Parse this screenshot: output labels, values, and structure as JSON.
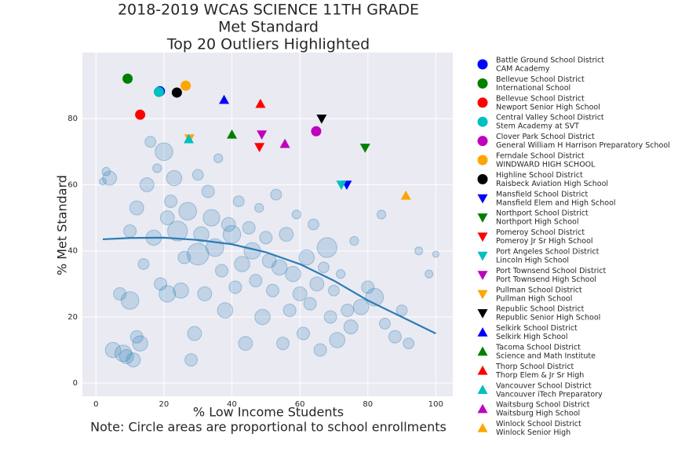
{
  "chart_data": {
    "type": "scatter",
    "title": [
      "2018-2019 WCAS SCIENCE 11TH GRADE",
      "Met Standard",
      "Top 20 Outliers Highlighted"
    ],
    "xlabel": "% Low Income Students",
    "note": "Note: Circle areas are proportional to school enrollments",
    "ylabel": "% Met Standard",
    "xlim": [
      -4,
      105
    ],
    "ylim": [
      -4,
      100
    ],
    "xticks": [
      0,
      20,
      40,
      60,
      80,
      100
    ],
    "yticks": [
      0,
      20,
      40,
      60,
      80
    ],
    "grid": true,
    "legend": "outside-right",
    "background": {
      "color": "#1f77b4",
      "x": [
        2,
        3,
        4,
        5,
        7,
        8,
        9,
        10,
        10,
        11,
        12,
        12,
        13,
        14,
        15,
        16,
        17,
        18,
        19,
        20,
        21,
        21,
        22,
        23,
        24,
        25,
        26,
        27,
        28,
        29,
        30,
        30,
        31,
        32,
        33,
        34,
        35,
        36,
        37,
        38,
        39,
        40,
        41,
        42,
        43,
        44,
        45,
        46,
        47,
        48,
        49,
        50,
        51,
        52,
        53,
        54,
        55,
        56,
        57,
        58,
        59,
        60,
        61,
        62,
        63,
        64,
        65,
        66,
        67,
        68,
        69,
        70,
        71,
        72,
        74,
        75,
        76,
        78,
        80,
        82,
        84,
        85,
        88,
        90,
        92,
        95,
        98,
        100
      ],
      "y": [
        61,
        64,
        62,
        10,
        27,
        9,
        8,
        25,
        46,
        7,
        53,
        14,
        12,
        36,
        60,
        73,
        44,
        65,
        30,
        70,
        27,
        50,
        55,
        62,
        46,
        28,
        38,
        52,
        7,
        15,
        39,
        63,
        45,
        27,
        58,
        50,
        41,
        68,
        34,
        22,
        48,
        45,
        29,
        55,
        36,
        12,
        47,
        40,
        31,
        53,
        20,
        44,
        37,
        28,
        57,
        35,
        12,
        45,
        22,
        33,
        51,
        27,
        15,
        38,
        24,
        48,
        30,
        10,
        35,
        41,
        20,
        28,
        13,
        33,
        22,
        17,
        43,
        23,
        29,
        26,
        51,
        18,
        14,
        22,
        12,
        40,
        33,
        39
      ],
      "sizes": [
        60,
        90,
        250,
        300,
        200,
        350,
        250,
        400,
        200,
        250,
        250,
        200,
        300,
        150,
        250,
        150,
        300,
        100,
        200,
        400,
        350,
        250,
        200,
        300,
        500,
        300,
        200,
        400,
        200,
        250,
        600,
        150,
        300,
        250,
        200,
        350,
        400,
        100,
        200,
        300,
        250,
        400,
        200,
        150,
        300,
        250,
        200,
        350,
        200,
        100,
        300,
        200,
        250,
        200,
        150,
        300,
        200,
        250,
        200,
        300,
        100,
        250,
        200,
        300,
        200,
        150,
        250,
        200,
        150,
        500,
        200,
        150,
        300,
        100,
        200,
        250,
        100,
        300,
        200,
        400,
        100,
        150,
        200,
        150,
        150,
        80,
        80,
        50
      ]
    },
    "trend": {
      "color": "#2c7bb6",
      "x": [
        2,
        10,
        20,
        30,
        40,
        50,
        60,
        70,
        80,
        90,
        100
      ],
      "y": [
        43.5,
        43.9,
        44,
        43.3,
        42,
        39.6,
        36,
        31,
        25,
        20,
        15
      ]
    },
    "series": [
      {
        "name": "Battle Ground School District",
        "school": "CAM Academy",
        "color": "#0000ff",
        "marker": "circle",
        "x": 18.8,
        "y": 88.3
      },
      {
        "name": "Bellevue School District",
        "school": "International School",
        "color": "#008000",
        "marker": "circle",
        "x": 9.3,
        "y": 92.1
      },
      {
        "name": "Bellevue School District",
        "school": "Newport Senior High School",
        "color": "#ff0000",
        "marker": "circle",
        "x": 13.0,
        "y": 81.2
      },
      {
        "name": "Central Valley School District",
        "school": "Stem Academy at SVT",
        "color": "#00bfbf",
        "marker": "circle",
        "x": 18.5,
        "y": 88.1
      },
      {
        "name": "Clover Park School District",
        "school": "General William H Harrison Preparatory School",
        "color": "#bf00bf",
        "marker": "circle",
        "x": 64.8,
        "y": 76.2
      },
      {
        "name": "Ferndale School District",
        "school": "WINDWARD HIGH SCHOOL",
        "color": "#ffa500",
        "marker": "circle",
        "x": 26.4,
        "y": 90.0
      },
      {
        "name": "Highline School District",
        "school": "Raisbeck Aviation High School",
        "color": "#000000",
        "marker": "circle",
        "x": 23.8,
        "y": 87.9
      },
      {
        "name": "Mansfield School District",
        "school": "Mansfield Elem and High School",
        "color": "#0000ff",
        "marker": "down",
        "x": 73.8,
        "y": 60.0
      },
      {
        "name": "Northport School District",
        "school": "Northport High School",
        "color": "#008000",
        "marker": "down",
        "x": 79.2,
        "y": 71.2
      },
      {
        "name": "Pomeroy School District",
        "school": "Pomeroy Jr Sr High School",
        "color": "#ff0000",
        "marker": "down",
        "x": 48.1,
        "y": 71.4
      },
      {
        "name": "Port Angeles School District",
        "school": "Lincoln High School",
        "color": "#00bfbf",
        "marker": "down",
        "x": 72.2,
        "y": 60.0
      },
      {
        "name": "Port Townsend School District",
        "school": "Port Townsend High School",
        "color": "#bf00bf",
        "marker": "down",
        "x": 48.8,
        "y": 75.2
      },
      {
        "name": "Pullman School District",
        "school": "Pullman High School",
        "color": "#ffa500",
        "marker": "down",
        "x": 27.5,
        "y": 74.0
      },
      {
        "name": "Republic School District",
        "school": "Republic Senior High School",
        "color": "#000000",
        "marker": "down",
        "x": 66.4,
        "y": 80.0
      },
      {
        "name": "Selkirk School District",
        "school": "Selkirk High School",
        "color": "#0000ff",
        "marker": "up",
        "x": 37.7,
        "y": 85.7
      },
      {
        "name": "Tacoma School District",
        "school": "Science and Math Institute",
        "color": "#008000",
        "marker": "up",
        "x": 40.0,
        "y": 75.2
      },
      {
        "name": "Thorp School District",
        "school": "Thorp Elem & Jr Sr High",
        "color": "#ff0000",
        "marker": "up",
        "x": 48.4,
        "y": 84.5
      },
      {
        "name": "Vancouver School District",
        "school": "Vancouver iTech Preparatory",
        "color": "#00bfbf",
        "marker": "up",
        "x": 27.3,
        "y": 73.8
      },
      {
        "name": "Waitsburg School District",
        "school": "Waitsburg High School",
        "color": "#bf00bf",
        "marker": "up",
        "x": 55.6,
        "y": 72.4
      },
      {
        "name": "Winlock School District",
        "school": "Winlock Senior High",
        "color": "#ffa500",
        "marker": "up",
        "x": 91.2,
        "y": 56.7
      }
    ]
  }
}
